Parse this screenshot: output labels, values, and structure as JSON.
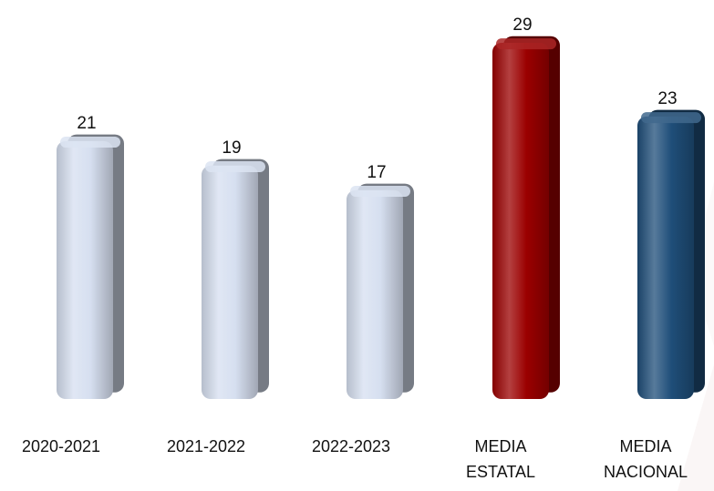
{
  "chart_data": {
    "type": "bar",
    "categories": [
      [
        "2020-2021"
      ],
      [
        "2021-2022"
      ],
      [
        "2022-2023"
      ],
      [
        "MEDIA",
        "ESTATAL"
      ],
      [
        "MEDIA",
        "NACIONAL"
      ]
    ],
    "values": [
      21,
      19,
      17,
      29,
      23
    ],
    "data_labels": [
      "21",
      "19",
      "17",
      "29",
      "23"
    ],
    "bar_colors": [
      "#d6dff0",
      "#d6dff0",
      "#d6dff0",
      "#9b0000",
      "#1f4e79"
    ],
    "title": "",
    "xlabel": "",
    "ylabel": "",
    "ylim": [
      0,
      31
    ],
    "grid": false,
    "legend": "none",
    "style": "3d-rounded-columns"
  }
}
